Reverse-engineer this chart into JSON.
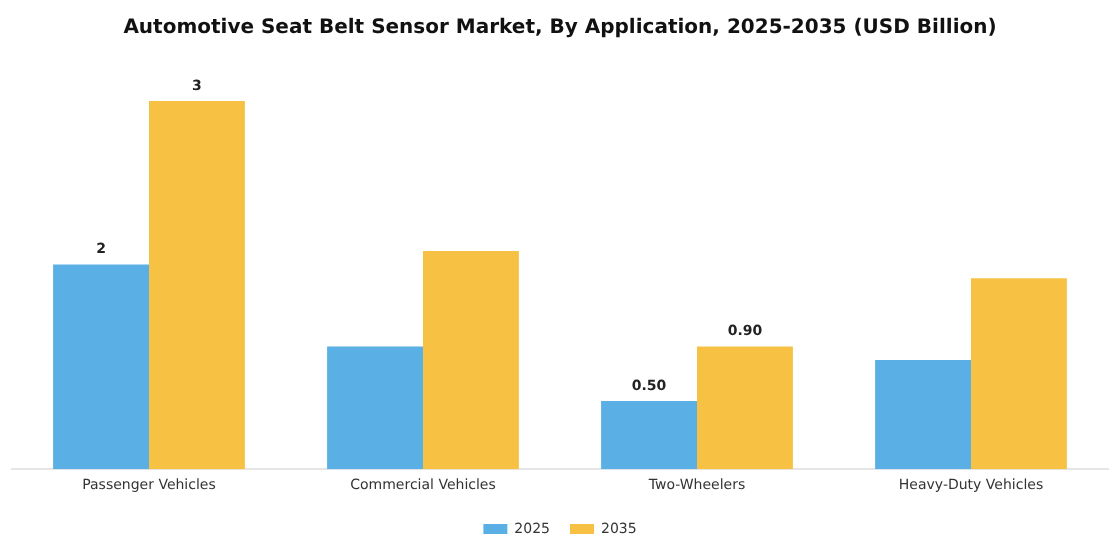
{
  "chart_data": {
    "type": "bar",
    "title": "Automotive Seat Belt Sensor Market, By Application, 2025-2035 (USD Billion)",
    "categories": [
      "Passenger Vehicles",
      "Commercial Vehicles",
      "Two-Wheelers",
      "Heavy-Duty Vehicles"
    ],
    "series": [
      {
        "name": "2025",
        "color": "#5ab0e5",
        "values": [
          1.5,
          0.9,
          0.5,
          0.8
        ],
        "value_labels": [
          "2",
          null,
          "0.50",
          null
        ]
      },
      {
        "name": "2035",
        "color": "#f7c244",
        "values": [
          2.7,
          1.6,
          0.9,
          1.4
        ],
        "value_labels": [
          "3",
          null,
          "0.90",
          null
        ]
      }
    ],
    "legend": "bottom",
    "grid": false
  }
}
